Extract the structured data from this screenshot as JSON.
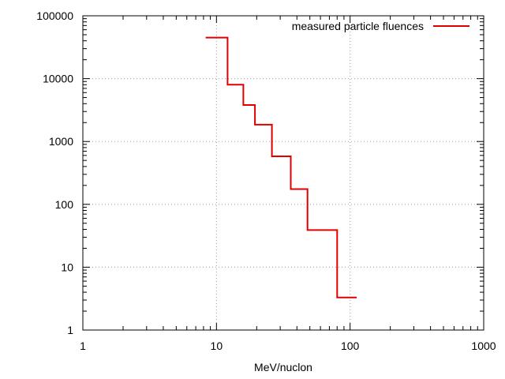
{
  "chart_data": {
    "type": "line",
    "style": "step",
    "title": "",
    "xlabel": "MeV/nuclon",
    "ylabel": "",
    "xscale": "log",
    "yscale": "log",
    "xlim": [
      1,
      1000
    ],
    "ylim": [
      1,
      100000
    ],
    "grid": true,
    "legend_position": "top-right",
    "x_ticks": [
      "1",
      "10",
      "100",
      "1000"
    ],
    "y_ticks": [
      "1",
      "10",
      "100",
      "1000",
      "10000",
      "100000"
    ],
    "series": [
      {
        "name": "measured particle fluences",
        "color": "#e00000",
        "points": [
          [
            8.3,
            45000
          ],
          [
            12.1,
            45000
          ],
          [
            12.1,
            8000
          ],
          [
            15.9,
            8000
          ],
          [
            15.9,
            3800
          ],
          [
            19.4,
            3800
          ],
          [
            19.4,
            1850
          ],
          [
            26.0,
            1850
          ],
          [
            26.0,
            580
          ],
          [
            36.0,
            580
          ],
          [
            36.0,
            175
          ],
          [
            48.0,
            175
          ],
          [
            48.0,
            39
          ],
          [
            80.0,
            39
          ],
          [
            80.0,
            3.3
          ],
          [
            112.0,
            3.3
          ]
        ]
      }
    ]
  }
}
